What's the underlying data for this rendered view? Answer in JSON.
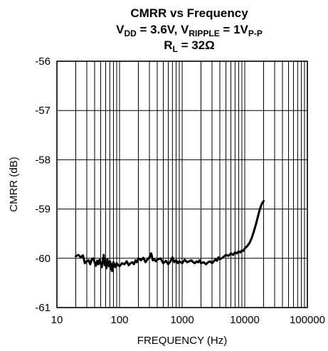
{
  "chart_data": {
    "type": "line",
    "title": {
      "line1": "CMRR vs Frequency",
      "line2": {
        "p1": "V",
        "p1_sub": "DD",
        "p2": " = 3.6V, V",
        "p2_sub": "RIPPLE",
        "p3": " = 1V",
        "p3_sub": "P-P"
      },
      "line3": {
        "p1": "R",
        "p1_sub": "L",
        "p2": " = 32Ω"
      }
    },
    "xlabel": "FREQUENCY (Hz)",
    "ylabel": "CMRR (dB)",
    "x_scale": "log",
    "xlim": [
      20,
      20000
    ],
    "ylim": [
      -61,
      -56
    ],
    "x_tick_values": [
      10,
      100,
      1000,
      10000,
      100000
    ],
    "x_tick_labels": [
      "10",
      "100",
      "1000",
      "10000",
      "100000"
    ],
    "y_tick_values": [
      -56,
      -57,
      -58,
      -59,
      -60,
      -61
    ],
    "y_tick_labels": [
      "-56",
      "-57",
      "-58",
      "-59",
      "-60",
      "-61"
    ],
    "grid": true,
    "series": [
      {
        "color": "#000000",
        "x": [
          20,
          22,
          24,
          26,
          28,
          30,
          32,
          34,
          36,
          38,
          40,
          42,
          44,
          46,
          48,
          50,
          52,
          54,
          56,
          58,
          60,
          62,
          64,
          66,
          68,
          70,
          72,
          74,
          76,
          78,
          80,
          85,
          90,
          95,
          100,
          110,
          120,
          130,
          140,
          150,
          160,
          170,
          180,
          190,
          200,
          220,
          240,
          260,
          280,
          300,
          320,
          340,
          360,
          380,
          400,
          450,
          500,
          550,
          600,
          650,
          700,
          750,
          800,
          850,
          900,
          950,
          1000,
          1100,
          1200,
          1300,
          1400,
          1500,
          1600,
          1700,
          1800,
          1900,
          2000,
          2200,
          2400,
          2600,
          2800,
          3000,
          3200,
          3400,
          3600,
          3800,
          4000,
          4500,
          5000,
          5500,
          6000,
          6500,
          7000,
          7500,
          8000,
          8500,
          9000,
          9500,
          10000,
          11000,
          12000,
          13000,
          14000,
          15000,
          16000,
          17000,
          18000,
          19000,
          20000
        ],
        "y": [
          -59.96,
          -59.93,
          -59.98,
          -59.94,
          -60.1,
          -60.06,
          -60.04,
          -60.12,
          -60.02,
          -60.0,
          -60.08,
          -60.15,
          -60.05,
          -60.12,
          -60.03,
          -60.1,
          -60.18,
          -60.04,
          -59.93,
          -60.14,
          -60.08,
          -60.2,
          -60.02,
          -60.12,
          -60.16,
          -60.06,
          -60.1,
          -60.22,
          -60.26,
          -60.12,
          -60.08,
          -60.18,
          -60.1,
          -60.14,
          -60.16,
          -60.1,
          -60.12,
          -60.06,
          -60.14,
          -60.1,
          -60.08,
          -60.12,
          -60.04,
          -60.08,
          -60.0,
          -60.04,
          -59.99,
          -60.08,
          -60.02,
          -59.98,
          -59.9,
          -60.04,
          -60.02,
          -60.06,
          -60.03,
          -60.0,
          -60.1,
          -60.05,
          -60.12,
          -60.06,
          -59.98,
          -60.08,
          -60.04,
          -60.1,
          -60.06,
          -60.08,
          -60.1,
          -60.03,
          -60.08,
          -60.06,
          -60.04,
          -60.08,
          -60.1,
          -60.06,
          -60.08,
          -60.04,
          -60.1,
          -60.08,
          -60.12,
          -60.08,
          -60.06,
          -60.1,
          -60.06,
          -60.02,
          -60.05,
          -59.98,
          -60.02,
          -59.98,
          -59.93,
          -59.95,
          -59.9,
          -59.93,
          -59.88,
          -59.9,
          -59.86,
          -59.88,
          -59.84,
          -59.85,
          -59.8,
          -59.75,
          -59.68,
          -59.58,
          -59.45,
          -59.32,
          -59.18,
          -59.05,
          -58.95,
          -58.88,
          -58.84
        ]
      }
    ]
  }
}
